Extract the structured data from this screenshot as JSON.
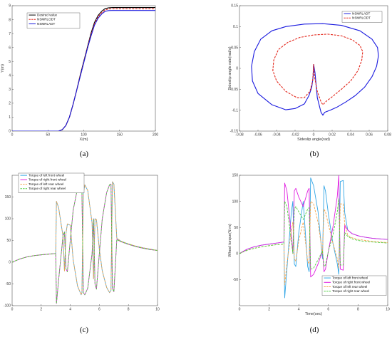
{
  "colors": {
    "black": "#000000",
    "red": "#e3261b",
    "blue": "#1a1adf",
    "cyan": "#33a6e6",
    "magenta": "#e020e0",
    "orange": "#f5a34a",
    "green": "#4ccd3c",
    "axis": "#555555"
  },
  "chart_data": [
    {
      "id": "a",
      "type": "line",
      "caption": "(a)",
      "xlabel": "X(m)",
      "ylabel": "Y(m)",
      "xlim": [
        0,
        200
      ],
      "ylim": [
        0,
        9
      ],
      "xticks": [
        "0",
        "50",
        "100",
        "150",
        "200"
      ],
      "yticks": [
        "0",
        "1",
        "2",
        "3",
        "4",
        "5",
        "6",
        "7",
        "8",
        "9"
      ],
      "legend_position": "top-left",
      "series": [
        {
          "name": "Desired value",
          "color": "#000000",
          "style": "solid",
          "x": [
            0,
            65,
            70,
            75,
            80,
            85,
            90,
            95,
            100,
            105,
            110,
            115,
            120,
            125,
            130,
            135,
            140,
            200
          ],
          "y": [
            0,
            0,
            0.1,
            0.4,
            1.0,
            1.9,
            2.9,
            4.0,
            5.0,
            6.0,
            7.0,
            7.8,
            8.3,
            8.6,
            8.8,
            8.85,
            8.87,
            8.87
          ]
        },
        {
          "name": "NSMRLODT",
          "color": "#e3261b",
          "style": "dashed",
          "x": [
            0,
            65,
            70,
            75,
            80,
            85,
            90,
            95,
            100,
            105,
            110,
            115,
            120,
            125,
            130,
            135,
            140,
            200
          ],
          "y": [
            0,
            0,
            0.1,
            0.4,
            1.0,
            1.9,
            2.9,
            3.95,
            4.95,
            5.95,
            6.9,
            7.7,
            8.2,
            8.5,
            8.7,
            8.77,
            8.78,
            8.78
          ]
        },
        {
          "name": "NSMRLADT",
          "color": "#1a1adf",
          "style": "solid",
          "x": [
            0,
            65,
            70,
            75,
            80,
            85,
            90,
            95,
            100,
            105,
            110,
            115,
            120,
            125,
            130,
            135,
            140,
            200
          ],
          "y": [
            0,
            0,
            0.1,
            0.4,
            1.0,
            1.9,
            2.9,
            3.9,
            4.9,
            5.9,
            6.8,
            7.6,
            8.1,
            8.4,
            8.6,
            8.65,
            8.66,
            8.66
          ]
        }
      ]
    },
    {
      "id": "b",
      "type": "line",
      "caption": "(b)",
      "xlabel": "Sideslip angle(rad)",
      "ylabel": "Sideslip angle rate(rad/s)",
      "xlim": [
        -0.08,
        0.08
      ],
      "ylim": [
        -0.15,
        0.15
      ],
      "xticks": [
        "-0.08",
        "-0.06",
        "-0.04",
        "-0.02",
        "0",
        "0.02",
        "0.04",
        "0.06",
        "0.08"
      ],
      "yticks": [
        "-0.15",
        "-0.1",
        "-0.05",
        "0",
        "0.05",
        "0.1",
        "0.15"
      ],
      "legend_position": "top-right",
      "series": [
        {
          "name": "NSMRLADT",
          "color": "#1a1adf",
          "style": "solid",
          "x": [
            0,
            0.0015,
            0.004,
            0.008,
            0.01,
            0.012,
            0.018,
            0.025,
            0.035,
            0.045,
            0.055,
            0.063,
            0.068,
            0.07,
            0.069,
            0.063,
            0.05,
            0.03,
            0.01,
            -0.01,
            -0.03,
            -0.045,
            -0.057,
            -0.064,
            -0.067,
            -0.066,
            -0.06,
            -0.045,
            -0.03,
            -0.02,
            -0.01,
            -0.005,
            -0.002,
            -0.0005,
            0.0
          ],
          "y": [
            0.01,
            -0.01,
            -0.07,
            -0.105,
            -0.112,
            -0.105,
            -0.1,
            -0.093,
            -0.08,
            -0.065,
            -0.045,
            -0.02,
            0.005,
            0.03,
            0.05,
            0.07,
            0.09,
            0.103,
            0.107,
            0.106,
            0.1,
            0.09,
            0.07,
            0.04,
            0.005,
            -0.03,
            -0.06,
            -0.087,
            -0.099,
            -0.096,
            -0.085,
            -0.065,
            -0.045,
            -0.02,
            0.01
          ]
        },
        {
          "name": "NSMRLODT",
          "color": "#e3261b",
          "style": "dashed",
          "x": [
            0,
            0.001,
            0.004,
            0.008,
            0.01,
            0.014,
            0.02,
            0.03,
            0.04,
            0.048,
            0.052,
            0.053,
            0.05,
            0.042,
            0.03,
            0.015,
            0.0,
            -0.015,
            -0.028,
            -0.038,
            -0.043,
            -0.044,
            -0.04,
            -0.03,
            -0.018,
            -0.01,
            -0.004,
            -0.001,
            0.0
          ],
          "y": [
            0.01,
            -0.02,
            -0.055,
            -0.08,
            -0.087,
            -0.078,
            -0.068,
            -0.05,
            -0.03,
            -0.005,
            0.02,
            0.04,
            0.055,
            0.068,
            0.078,
            0.082,
            0.08,
            0.074,
            0.062,
            0.045,
            0.02,
            -0.005,
            -0.03,
            -0.055,
            -0.07,
            -0.07,
            -0.055,
            -0.03,
            0.01
          ]
        }
      ]
    },
    {
      "id": "c",
      "type": "line",
      "caption": "(c)",
      "xlabel": "",
      "ylabel": "",
      "xlim": [
        0,
        10
      ],
      "ylim": [
        -100,
        200
      ],
      "xticks": [
        "0",
        "2",
        "4",
        "6",
        "8",
        "10"
      ],
      "yticks": [
        "-100",
        "-50",
        "0",
        "50",
        "100",
        "150"
      ],
      "legend_position": "top-left",
      "series": [
        {
          "name": "Torque of left front wheel",
          "color": "#33a6e6",
          "style": "solid",
          "x": [
            0,
            0.5,
            1,
            1.5,
            2,
            2.5,
            3.0,
            3.05,
            3.2,
            3.5,
            3.6,
            3.7,
            3.8,
            4.0,
            4.2,
            4.5,
            4.75,
            4.8,
            4.9,
            5.0,
            5.2,
            5.5,
            5.6,
            5.7,
            5.8,
            6.0,
            6.2,
            6.5,
            6.7,
            6.8,
            6.9,
            7.0,
            7.2,
            7.5,
            8,
            8.5,
            9,
            9.5,
            10
          ],
          "y": [
            0,
            7,
            12,
            15,
            17,
            18.5,
            20,
            140,
            125,
            60,
            -20,
            65,
            88,
            85,
            5,
            -55,
            -75,
            -70,
            160,
            178,
            165,
            90,
            -38,
            100,
            98,
            30,
            -20,
            -58,
            -70,
            -65,
            185,
            180,
            55,
            48,
            42,
            37,
            33,
            30,
            27
          ]
        },
        {
          "name": "Torque of right front wheel",
          "color": "#e020e0",
          "style": "solid",
          "x": [
            0,
            0.5,
            1,
            1.5,
            2,
            2.5,
            3.0,
            3.05,
            3.2,
            3.5,
            3.6,
            3.7,
            3.8,
            4.0,
            4.2,
            4.5,
            4.75,
            4.8,
            4.9,
            5.0,
            5.2,
            5.5,
            5.6,
            5.7,
            5.8,
            6.0,
            6.2,
            6.5,
            6.7,
            6.8,
            6.9,
            7.0,
            7.2,
            7.5,
            8,
            8.5,
            9,
            9.5,
            10
          ],
          "y": [
            0,
            7,
            12,
            15,
            17,
            18.5,
            20,
            -95,
            -40,
            60,
            70,
            -15,
            -22,
            50,
            120,
            170,
            178,
            160,
            -70,
            -75,
            -60,
            20,
            100,
            -50,
            -62,
            20,
            100,
            160,
            178,
            180,
            -60,
            -68,
            52,
            47,
            41,
            36,
            32,
            29,
            27
          ]
        },
        {
          "name": "Torque of left rear wheel",
          "color": "#f5a34a",
          "style": "dashed",
          "x": [
            0,
            0.5,
            1,
            1.5,
            2,
            2.5,
            3.0,
            3.05,
            3.2,
            3.5,
            3.6,
            3.7,
            3.8,
            4.0,
            4.2,
            4.5,
            4.75,
            4.8,
            4.9,
            5.0,
            5.2,
            5.5,
            5.6,
            5.7,
            5.8,
            6.0,
            6.2,
            6.5,
            6.7,
            6.8,
            6.9,
            7.0,
            7.2,
            7.5,
            8,
            8.5,
            9,
            9.5,
            10
          ],
          "y": [
            0,
            7,
            12,
            15,
            17,
            18.5,
            20,
            140,
            125,
            60,
            -20,
            65,
            88,
            85,
            5,
            -55,
            -75,
            -70,
            160,
            178,
            165,
            90,
            -38,
            100,
            98,
            30,
            -20,
            -58,
            -70,
            -65,
            185,
            180,
            55,
            48,
            42,
            37,
            33,
            30,
            27
          ]
        },
        {
          "name": "Torque of right rear wheel",
          "color": "#4ccd3c",
          "style": "dashed",
          "x": [
            0,
            0.5,
            1,
            1.5,
            2,
            2.5,
            3.0,
            3.05,
            3.2,
            3.5,
            3.6,
            3.7,
            3.8,
            4.0,
            4.2,
            4.5,
            4.75,
            4.8,
            4.9,
            5.0,
            5.2,
            5.5,
            5.6,
            5.7,
            5.8,
            6.0,
            6.2,
            6.5,
            6.7,
            6.8,
            6.9,
            7.0,
            7.2,
            7.5,
            8,
            8.5,
            9,
            9.5,
            10
          ],
          "y": [
            0,
            7,
            12,
            15,
            17,
            18.5,
            20,
            -95,
            -40,
            60,
            70,
            -15,
            -22,
            50,
            120,
            170,
            178,
            160,
            -70,
            -75,
            -60,
            20,
            100,
            -50,
            -62,
            20,
            100,
            160,
            178,
            180,
            -60,
            -68,
            52,
            47,
            41,
            36,
            32,
            29,
            27
          ]
        }
      ]
    },
    {
      "id": "d",
      "type": "line",
      "caption": "(d)",
      "xlabel": "Time(sec)",
      "ylabel": "Wheel torque(N m)",
      "xlim": [
        0,
        10
      ],
      "ylim": [
        -100,
        150
      ],
      "xticks": [
        "0",
        "2",
        "4",
        "6",
        "8",
        "10"
      ],
      "yticks": [
        "-50",
        "0",
        "50",
        "100",
        "150"
      ],
      "legend_position": "bottom-right",
      "series": [
        {
          "name": "Torque of left front wheel",
          "color": "#33a6e6",
          "style": "solid",
          "x": [
            0,
            0.5,
            1,
            1.5,
            2,
            2.5,
            3.0,
            3.05,
            3.2,
            3.5,
            3.6,
            3.7,
            3.8,
            4.0,
            4.3,
            4.6,
            4.7,
            4.8,
            5.0,
            5.3,
            5.6,
            5.7,
            5.8,
            6.0,
            6.3,
            6.6,
            6.7,
            6.8,
            7.0,
            7.1,
            7.3,
            7.6,
            8,
            8.5,
            9,
            9.5,
            10
          ],
          "y": [
            0,
            8,
            13,
            16,
            18,
            20,
            22,
            -85,
            -30,
            80,
            100,
            -20,
            -25,
            40,
            100,
            -25,
            -35,
            145,
            130,
            80,
            -10,
            130,
            120,
            75,
            20,
            -20,
            -40,
            138,
            140,
            78,
            45,
            38,
            34,
            31,
            29,
            28,
            27
          ]
        },
        {
          "name": "Torque of right front wheel",
          "color": "#e020e0",
          "style": "solid",
          "x": [
            0,
            0.5,
            1,
            1.5,
            2,
            2.5,
            3.0,
            3.05,
            3.2,
            3.5,
            3.6,
            3.7,
            3.8,
            4.0,
            4.3,
            4.6,
            4.7,
            4.8,
            5.0,
            5.3,
            5.6,
            5.7,
            5.8,
            6.0,
            6.3,
            6.6,
            6.7,
            6.8,
            7.0,
            7.1,
            7.3,
            7.6,
            8,
            8.5,
            9,
            9.5,
            10
          ],
          "y": [
            0,
            8,
            13,
            16,
            18,
            20,
            22,
            135,
            120,
            35,
            0,
            120,
            125,
            108,
            90,
            120,
            125,
            -45,
            -40,
            -20,
            5,
            -35,
            -30,
            5,
            50,
            110,
            150,
            -30,
            -32,
            55,
            45,
            38,
            34,
            31,
            29,
            28,
            27
          ]
        },
        {
          "name": "Torque of left rear wheel",
          "color": "#f5a34a",
          "style": "dashed",
          "x": [
            0,
            0.5,
            1,
            1.5,
            2,
            2.5,
            3.0,
            3.05,
            3.2,
            3.5,
            3.6,
            3.7,
            3.8,
            4.0,
            4.3,
            4.6,
            4.7,
            4.8,
            5.0,
            5.3,
            5.6,
            5.7,
            5.8,
            6.0,
            6.3,
            6.6,
            6.7,
            6.8,
            7.0,
            7.1,
            7.3,
            7.6,
            8,
            8.5,
            9,
            9.5,
            10
          ],
          "y": [
            0,
            6,
            10,
            13,
            15,
            17,
            18,
            -60,
            -20,
            45,
            60,
            -10,
            -15,
            25,
            60,
            -15,
            -20,
            100,
            95,
            60,
            0,
            85,
            80,
            55,
            20,
            -10,
            -28,
            95,
            95,
            55,
            35,
            30,
            27,
            25,
            23,
            22,
            21
          ]
        },
        {
          "name": "Torque of right rear wheel",
          "color": "#4ccd3c",
          "style": "dashed",
          "x": [
            0,
            0.5,
            1,
            1.5,
            2,
            2.5,
            3.0,
            3.05,
            3.2,
            3.5,
            3.6,
            3.7,
            3.8,
            4.0,
            4.3,
            4.6,
            4.7,
            4.8,
            5.0,
            5.3,
            5.6,
            5.7,
            5.8,
            6.0,
            6.3,
            6.6,
            6.7,
            6.8,
            7.0,
            7.1,
            7.3,
            7.6,
            8,
            8.5,
            9,
            9.5,
            10
          ],
          "y": [
            0,
            6,
            10,
            13,
            15,
            17,
            18,
            100,
            90,
            25,
            0,
            85,
            90,
            80,
            65,
            85,
            88,
            -30,
            -28,
            -12,
            5,
            -25,
            -22,
            5,
            35,
            80,
            105,
            -22,
            -22,
            40,
            33,
            28,
            25,
            23,
            22,
            21,
            20
          ]
        }
      ]
    }
  ]
}
